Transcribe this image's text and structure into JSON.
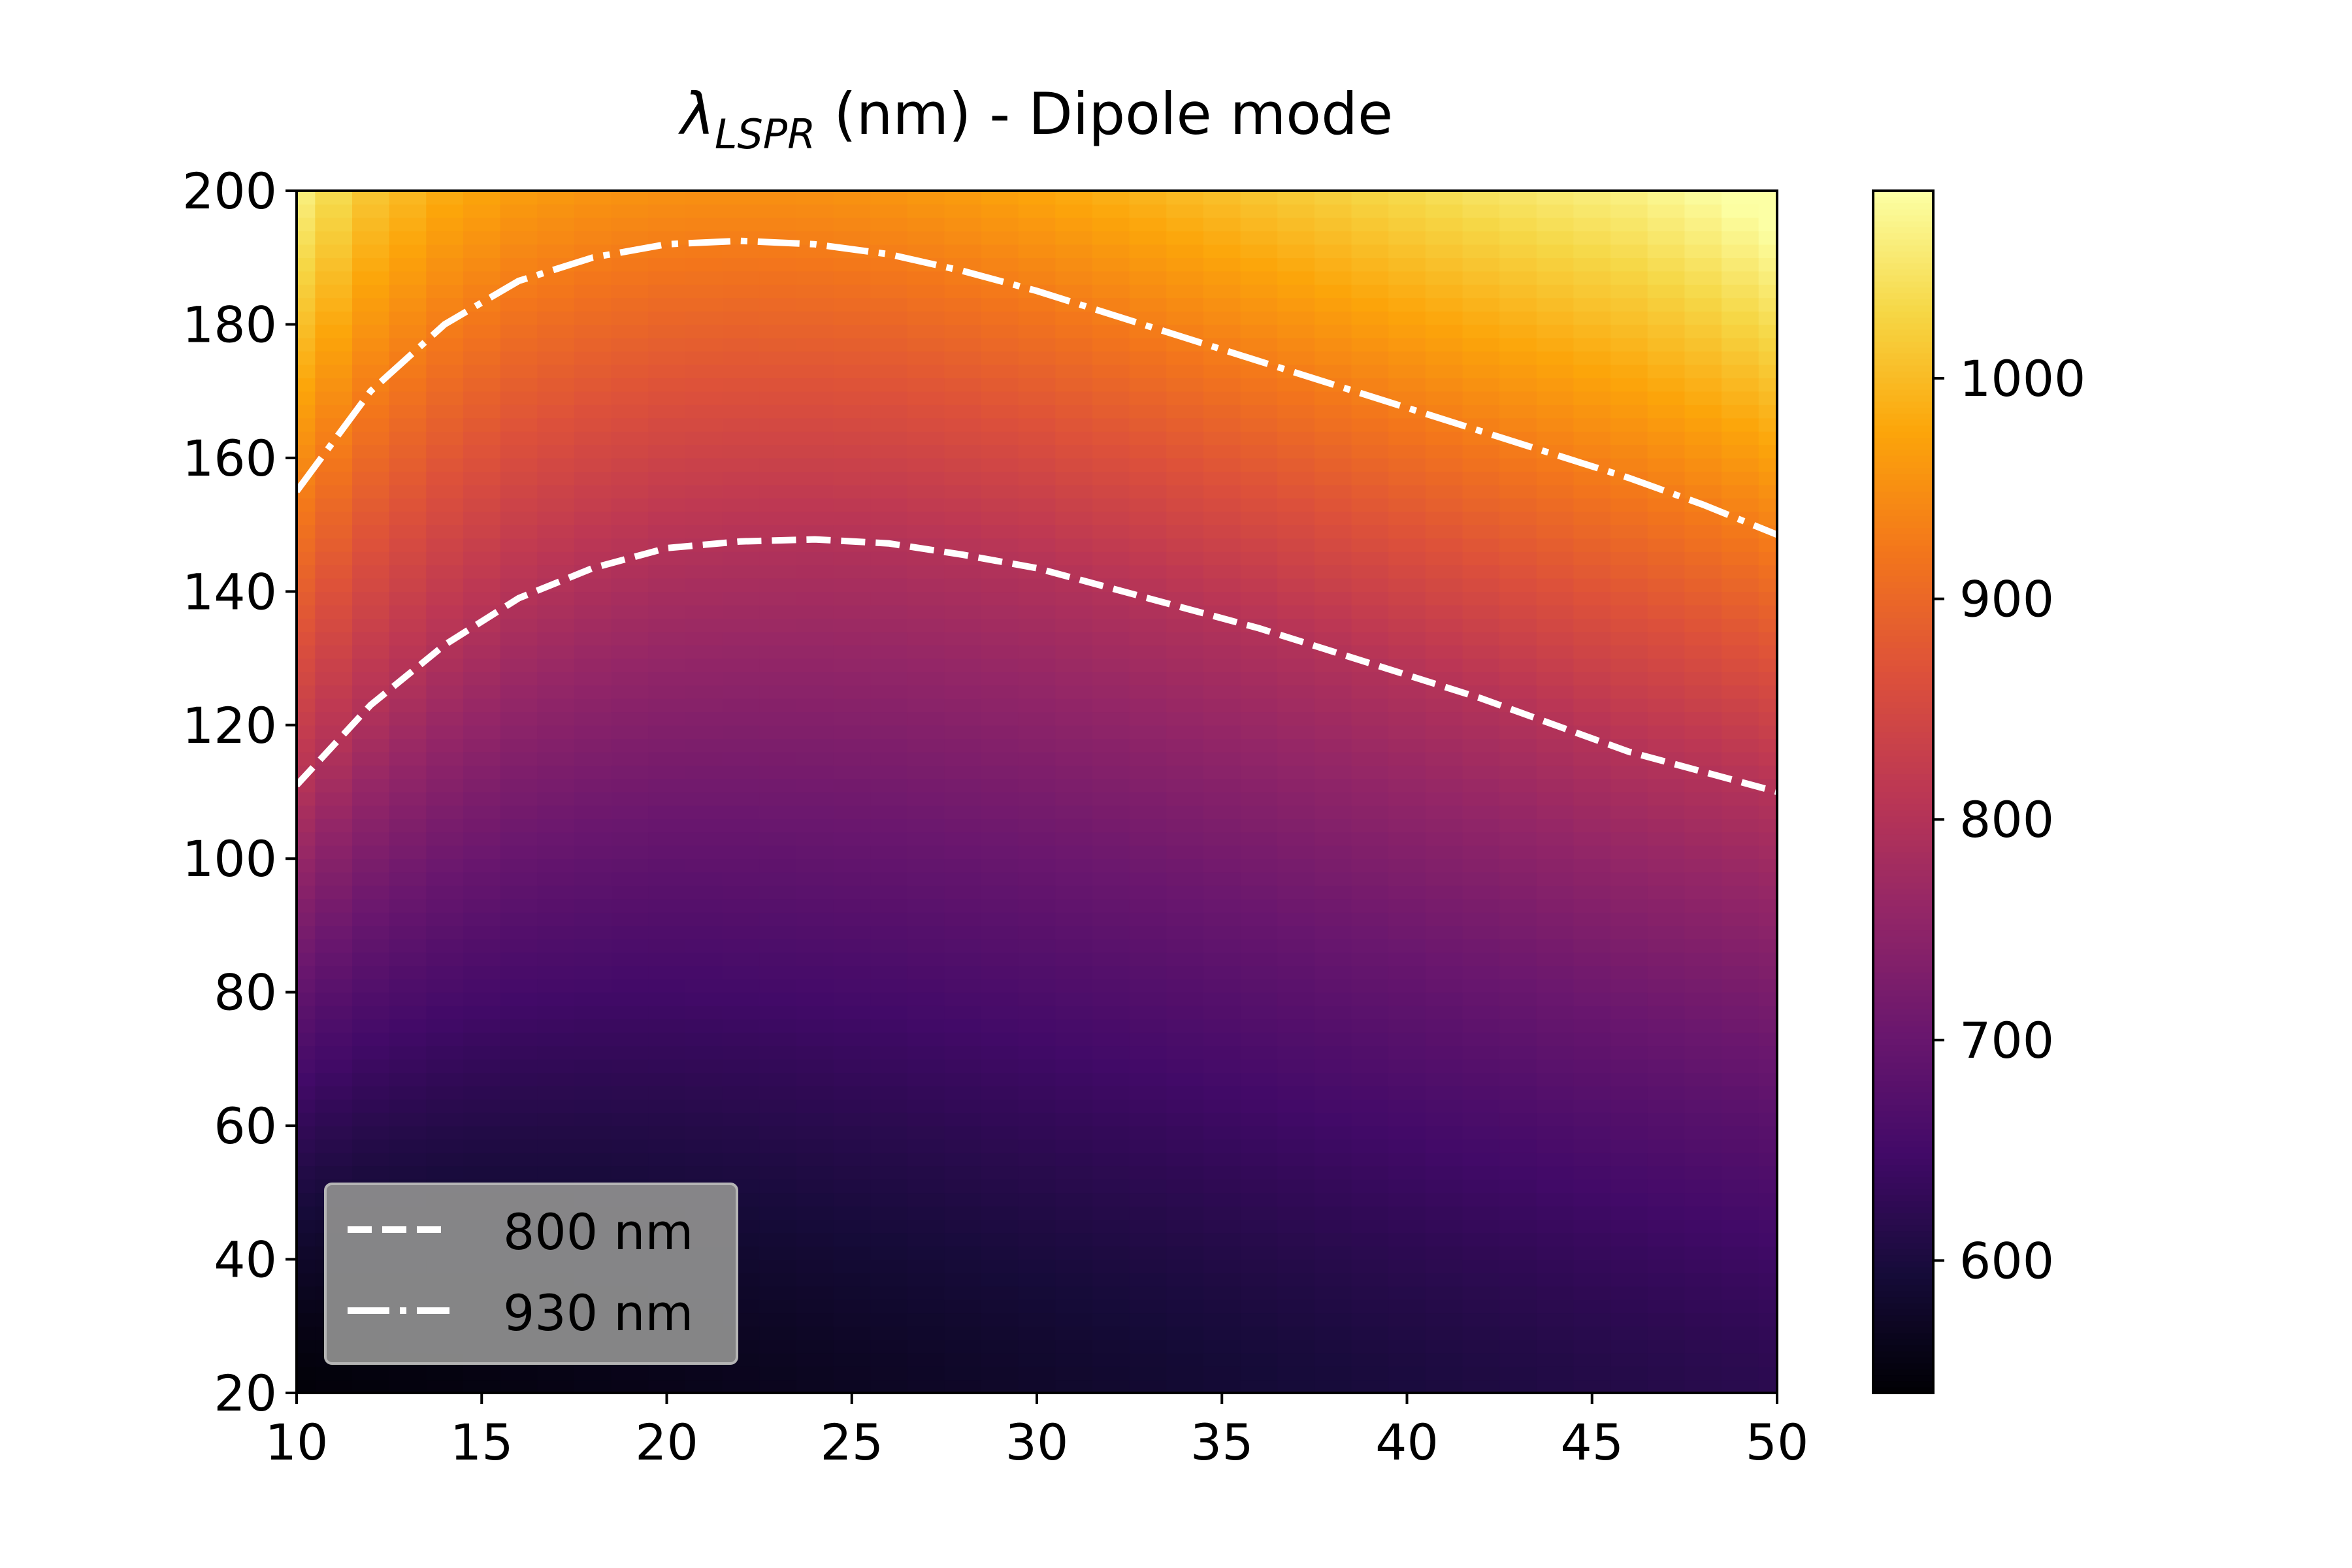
{
  "chart_data": {
    "type": "heatmap",
    "title_main": "λ",
    "title_sub": "LSPR",
    "title_rest": " (nm) - Dipole mode",
    "xlabel": "",
    "ylabel": "",
    "xlim": [
      10,
      50
    ],
    "ylim": [
      20,
      200
    ],
    "x_ticks": [
      "10",
      "15",
      "20",
      "25",
      "30",
      "35",
      "40",
      "45",
      "50"
    ],
    "y_ticks": [
      "20",
      "40",
      "60",
      "80",
      "100",
      "120",
      "140",
      "160",
      "180",
      "200"
    ],
    "colormap": "inferno",
    "color_range": [
      540,
      1085
    ],
    "colorbar_ticks": [
      "600",
      "700",
      "800",
      "900",
      "1000"
    ],
    "grid": false,
    "legend_position": "lower-left",
    "series": [
      {
        "name": "800 nm",
        "style": "dashed",
        "color": "#ffffff",
        "x": [
          10,
          12,
          14,
          16,
          18,
          20,
          22,
          24,
          26,
          28,
          30,
          32,
          34,
          36,
          38,
          40,
          42,
          44,
          46,
          48,
          50
        ],
        "y": [
          111,
          123,
          132,
          139,
          143.5,
          146.5,
          147.5,
          147.8,
          147.2,
          145.5,
          143.5,
          140.5,
          137.5,
          134.5,
          131,
          127.5,
          124,
          120,
          116,
          113,
          110
        ]
      },
      {
        "name": "930 nm",
        "style": "dashdot",
        "color": "#ffffff",
        "x": [
          10,
          12,
          14,
          16,
          18,
          20,
          22,
          24,
          26,
          28,
          30,
          32,
          34,
          36,
          38,
          40,
          42,
          44,
          46,
          48,
          50
        ],
        "y": [
          155,
          170,
          180,
          186.5,
          190,
          192,
          192.5,
          192,
          190.5,
          188,
          185,
          181.5,
          178,
          174.5,
          171,
          167.5,
          164,
          160.5,
          157,
          153,
          148.5
        ]
      }
    ],
    "legend_entries": [
      "800 nm",
      "930 nm"
    ]
  }
}
